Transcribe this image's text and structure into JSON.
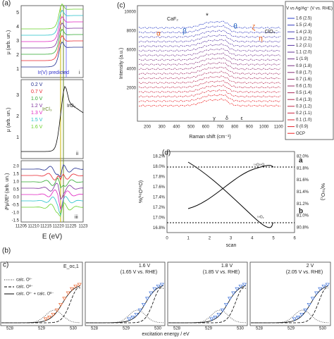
{
  "panel_a": {
    "label": "(a)",
    "y_label_top": "μ (arb. un.)",
    "y_label_mid": "μ (arb. un.)",
    "y_label_bottom": "∂²μ/∂E² (arb. un.)",
    "sub_labels": [
      "i",
      "ii",
      "iii"
    ],
    "annotation_predicted": "Ir(V) predicted",
    "annotation_ircl3": "IrCl₃",
    "annotation_iro2": "IrO₂",
    "legend": [
      "0.2 V",
      "0.7 V",
      "1.0 V",
      "1.2 V",
      "1.3 V",
      "1.5 V",
      "1.6 V"
    ],
    "top_yticks": [
      "5",
      "4",
      "3",
      "2",
      "1"
    ],
    "mid_yticks": [
      "3",
      "2",
      "1"
    ],
    "bottom_yticks": [
      "2.0",
      "1.5",
      "1.0",
      "0.5",
      "0.0",
      "-0.5",
      "-1.0",
      "-1.5"
    ],
    "xticks": [
      "11205",
      "11210",
      "11215",
      "11220",
      "11225",
      "1123"
    ],
    "x_label": "E (eV)"
  },
  "panel_c": {
    "label": "(c)",
    "y_label": "Intensity (a.u.)",
    "x_label": "Raman shift (cm⁻¹)",
    "yticks": [
      "10000",
      "8000",
      "6000",
      "4000",
      "2000"
    ],
    "xticks": [
      "200",
      "300",
      "400",
      "500",
      "600",
      "700",
      "800",
      "900",
      "1000",
      "1100"
    ],
    "peaks": [
      "CaF₂",
      "α",
      "β",
      "*",
      "θ",
      "ζ",
      "η",
      "ClO₄⁻",
      "γ",
      "δ",
      "ε"
    ],
    "legend_title": "V vs Ag/Ag⁺ (V vs. RHE)",
    "legend": [
      "1.6 (2.5)",
      "1.5 (2.4)",
      "1.4 (2.3)",
      "1.3 (2.2)",
      "1.2 (2.1)",
      "1.1 (2.0)",
      "1 (1.9)",
      "0.9 (1.8)",
      "0.8 (1.7)",
      "0.7 (1.6)",
      "0.6 (1.5)",
      "0.5 (1.4)",
      "0.4 (1.3)",
      "0.3 (1.2)",
      "0.2 (1.1)",
      "0.1 (1.0)",
      "0 (0.9)",
      "OCP"
    ]
  },
  "panel_d": {
    "label": "(d)",
    "left_yticks": [
      "18.2%",
      "18.0%",
      "17.8%",
      "17.6%",
      "17.4%",
      "17.2%",
      "17.0%",
      "16.8%"
    ],
    "right_yticks": [
      "82.0%",
      "81.8%",
      "81.6%",
      "81.4%",
      "81.2%",
      "81.0%",
      "80.8%"
    ],
    "xticks": [
      "0",
      "1",
      "2",
      "3",
      "4",
      "5",
      "6"
    ],
    "x_label": "scan",
    "y_label_left": "%(¹⁶O¹⁸O)",
    "y_label_right": "%(¹⁸O₂)",
    "line_a": "a",
    "line_b": "b",
    "curve_top": "¹⁶O¹⁸O",
    "curve_bottom": "¹⁸O₂"
  },
  "panel_b": {
    "label": "(b)",
    "sub_label": "c)",
    "first_title": "E_oc,1",
    "titles": [
      "1.6 V",
      "1.8 V",
      "2 V"
    ],
    "subtitles": [
      "(1.65 V vs. RHE)",
      "(1.85 V vs. RHE)",
      "(2.05 V vs. RHE)"
    ],
    "legend": [
      "calc. Oᴵ⁻",
      "calc. Oᴵᴵ⁻",
      "calc. Oᴵ⁻ + calc. Oᴵᴵ⁻"
    ],
    "xticks": [
      "528",
      "529",
      "530"
    ],
    "x_label": "excitation energy / eV"
  }
}
